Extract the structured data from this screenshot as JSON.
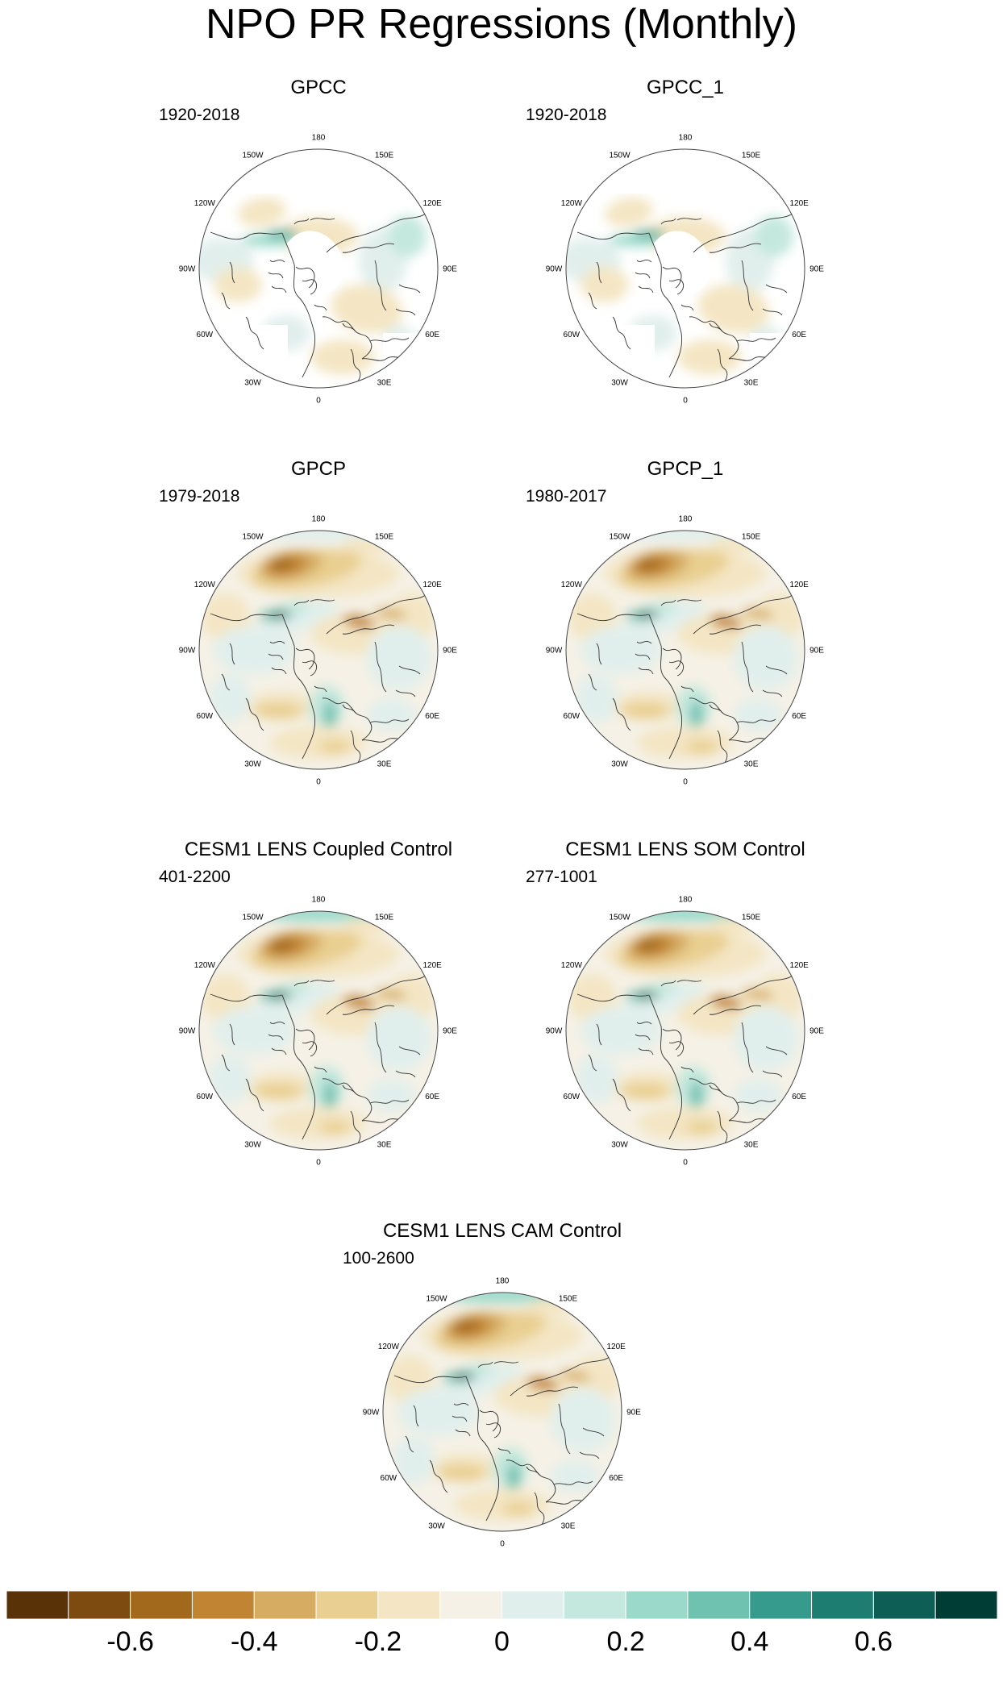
{
  "title": "NPO PR Regressions (Monthly)",
  "lon_labels": [
    "180",
    "150E",
    "120E",
    "90E",
    "60E",
    "30E",
    "0",
    "30W",
    "60W",
    "90W",
    "120W",
    "150W"
  ],
  "panels": [
    {
      "title": "GPCC",
      "period": "1920-2018",
      "dataset": "gpcc"
    },
    {
      "title": "GPCC_1",
      "period": "1920-2018",
      "dataset": "gpcc"
    },
    {
      "title": "GPCP",
      "period": "1979-2018",
      "dataset": "gpcp"
    },
    {
      "title": "GPCP_1",
      "period": "1980-2017",
      "dataset": "gpcp"
    },
    {
      "title": "CESM1 LENS Coupled Control",
      "period": "401-2200",
      "dataset": "model"
    },
    {
      "title": "CESM1 LENS SOM Control",
      "period": "277-1001",
      "dataset": "model"
    },
    {
      "title": "CESM1 LENS CAM Control",
      "period": "100-2600",
      "dataset": "model"
    }
  ],
  "colorbar": {
    "colors": [
      "#5a3208",
      "#7d4a10",
      "#a2681c",
      "#c18432",
      "#d6ac63",
      "#e9cf91",
      "#f4e6c4",
      "#f5f1e6",
      "#e1efec",
      "#c4e8de",
      "#9bdacb",
      "#6fc1b0",
      "#369b8c",
      "#1c7d70",
      "#0d5e54",
      "#003d35"
    ],
    "tick_labels": [
      "-0.6",
      "-0.4",
      "-0.2",
      "0",
      "0.2",
      "0.4",
      "0.6"
    ],
    "tick_values": [
      -0.6,
      -0.4,
      -0.2,
      0,
      0.2,
      0.4,
      0.6
    ],
    "range": [
      -0.8,
      0.8
    ]
  }
}
